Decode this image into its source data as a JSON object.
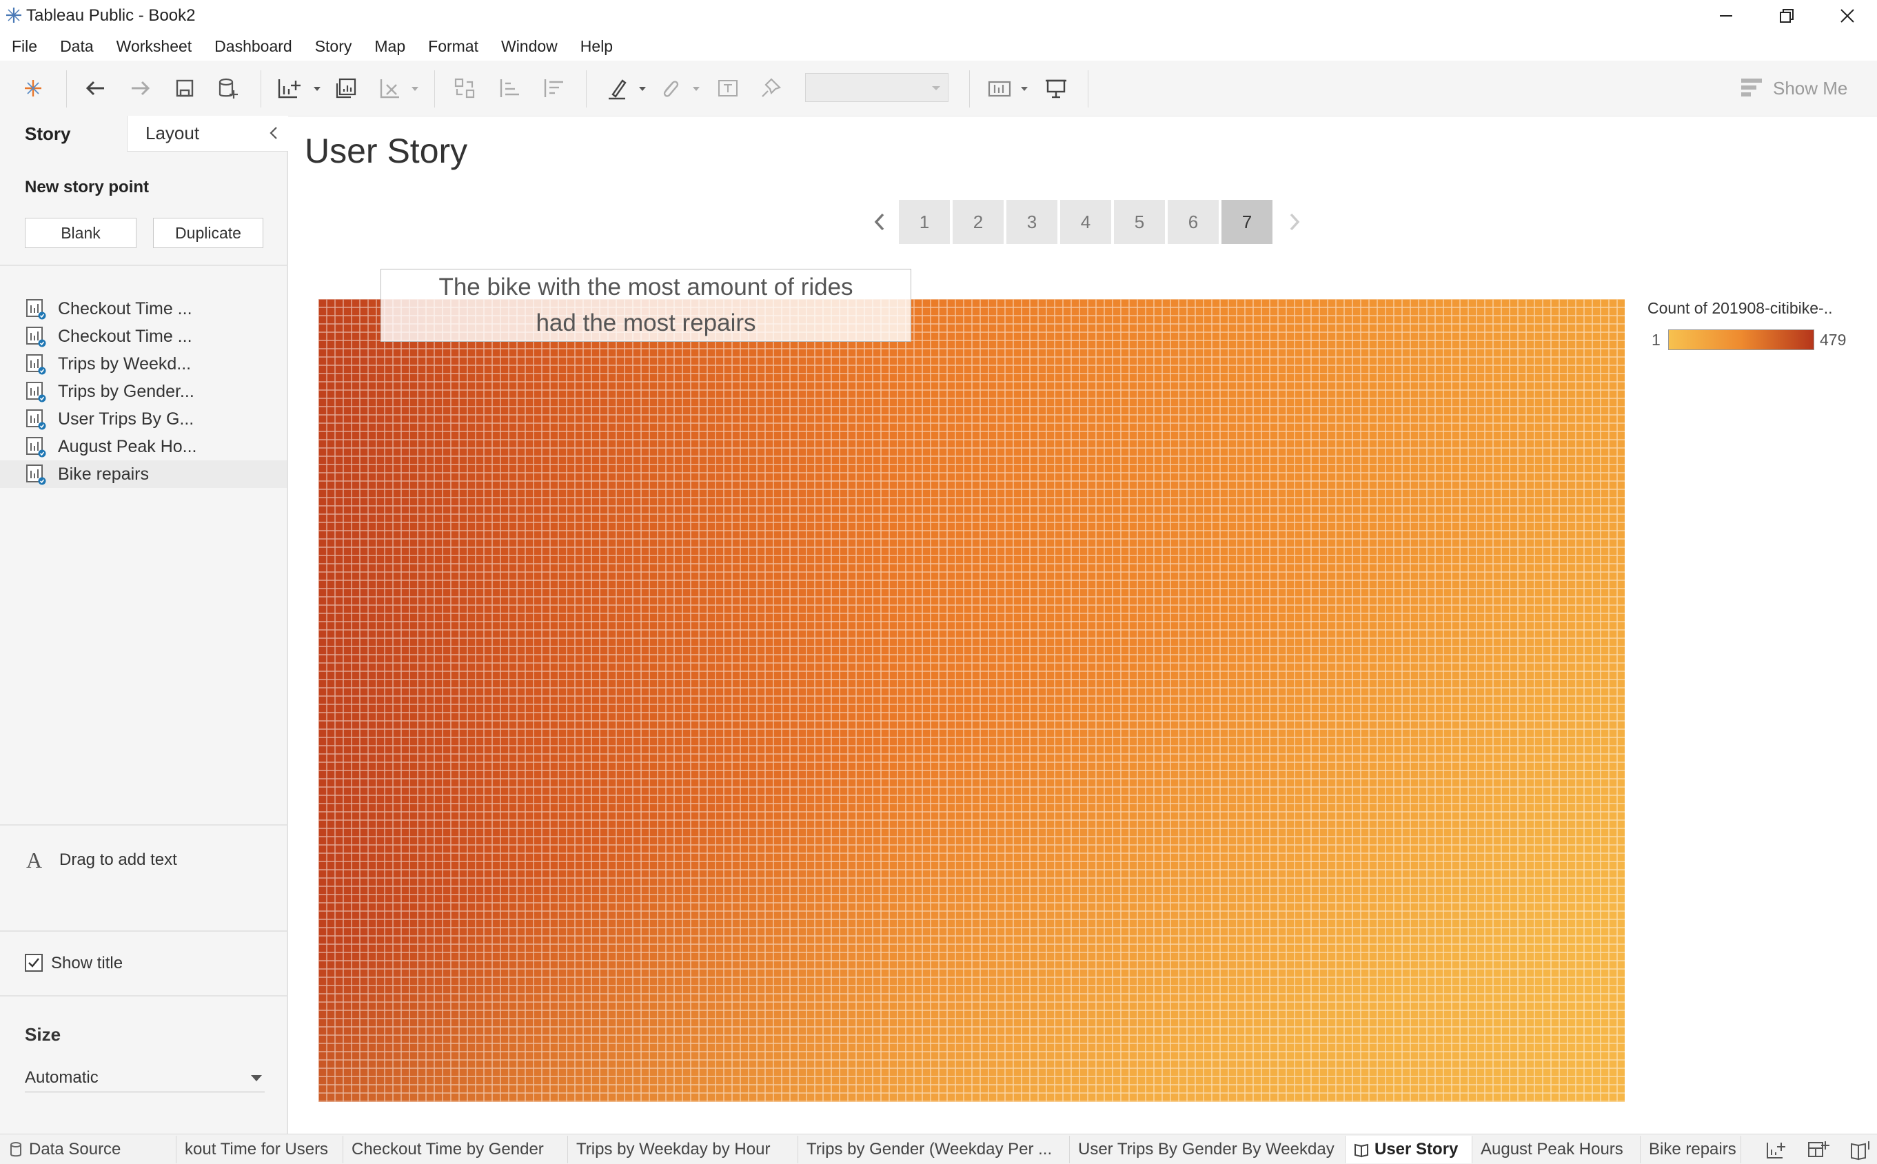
{
  "window": {
    "title": "Tableau Public - Book2"
  },
  "menu": [
    "File",
    "Data",
    "Worksheet",
    "Dashboard",
    "Story",
    "Map",
    "Format",
    "Window",
    "Help"
  ],
  "toolbar": {
    "show_me_label": "Show Me"
  },
  "left_pane": {
    "tabs": {
      "story": "Story",
      "layout": "Layout"
    },
    "new_story_point": {
      "label": "New story point",
      "blank": "Blank",
      "duplicate": "Duplicate"
    },
    "sheets": [
      "Checkout Time ...",
      "Checkout Time ...",
      "Trips by Weekd...",
      "Trips by Gender...",
      "User Trips By G...",
      "August Peak Ho...",
      "Bike repairs"
    ],
    "selected_sheet": "Bike repairs",
    "drag_text": {
      "icon_glyph": "A",
      "label": "Drag to add text"
    },
    "show_title": {
      "label": "Show title",
      "checked": true
    },
    "size": {
      "heading": "Size",
      "value": "Automatic"
    }
  },
  "story": {
    "title": "User Story",
    "points": [
      "1",
      "2",
      "3",
      "4",
      "5",
      "6",
      "7"
    ],
    "active_point": "7",
    "callout": {
      "line1": "The bike with the most amount of rides",
      "line2": "had the most repairs"
    }
  },
  "legend": {
    "title": "Count of 201908-citibike-..",
    "min": "1",
    "max": "479",
    "color_low": "#f7c14f",
    "color_mid": "#ee8a2f",
    "color_high": "#b5361b"
  },
  "bottom_tabs": {
    "data_source": "Data Source",
    "sheets": [
      "kout Time for Users",
      "Checkout Time by Gender",
      "Trips by Weekday by Hour",
      "Trips by Gender (Weekday Per ...",
      "User Trips By Gender By Weekday",
      "User Story",
      "August Peak Hours",
      "Bike repairs"
    ],
    "active": "User Story"
  },
  "colors": {
    "accent": "#1f77b4",
    "toolbar_bg": "#f5f5f5",
    "pane_bg": "#f5f5f5"
  }
}
